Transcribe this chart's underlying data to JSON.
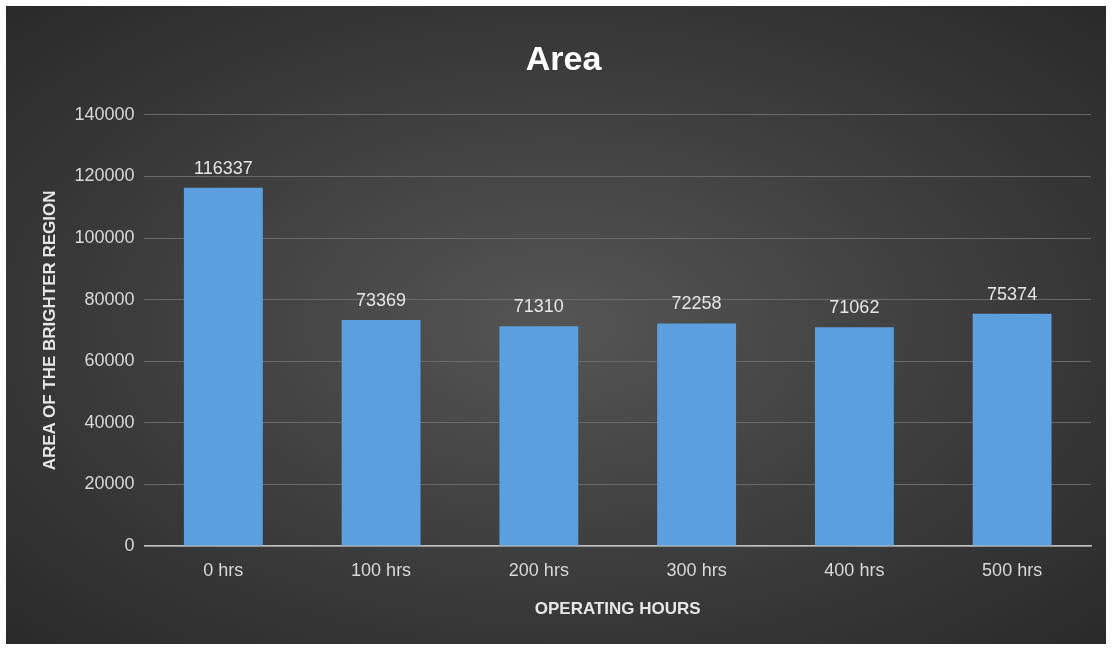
{
  "chart_data": {
    "type": "bar",
    "title": "Area",
    "xlabel": "OPERATING HOURS",
    "ylabel": "AREA OF THE BRIGHTER REGION",
    "categories": [
      "0 hrs",
      "100 hrs",
      "200 hrs",
      "300 hrs",
      "400 hrs",
      "500 hrs"
    ],
    "values": [
      116337,
      73369,
      71310,
      72258,
      71062,
      75374
    ],
    "color": "#5b9fde",
    "ylim": [
      0,
      140000
    ],
    "yticks": [
      0,
      20000,
      40000,
      60000,
      80000,
      100000,
      120000,
      140000
    ],
    "grid": "y",
    "data_labels": true,
    "legend": false
  }
}
